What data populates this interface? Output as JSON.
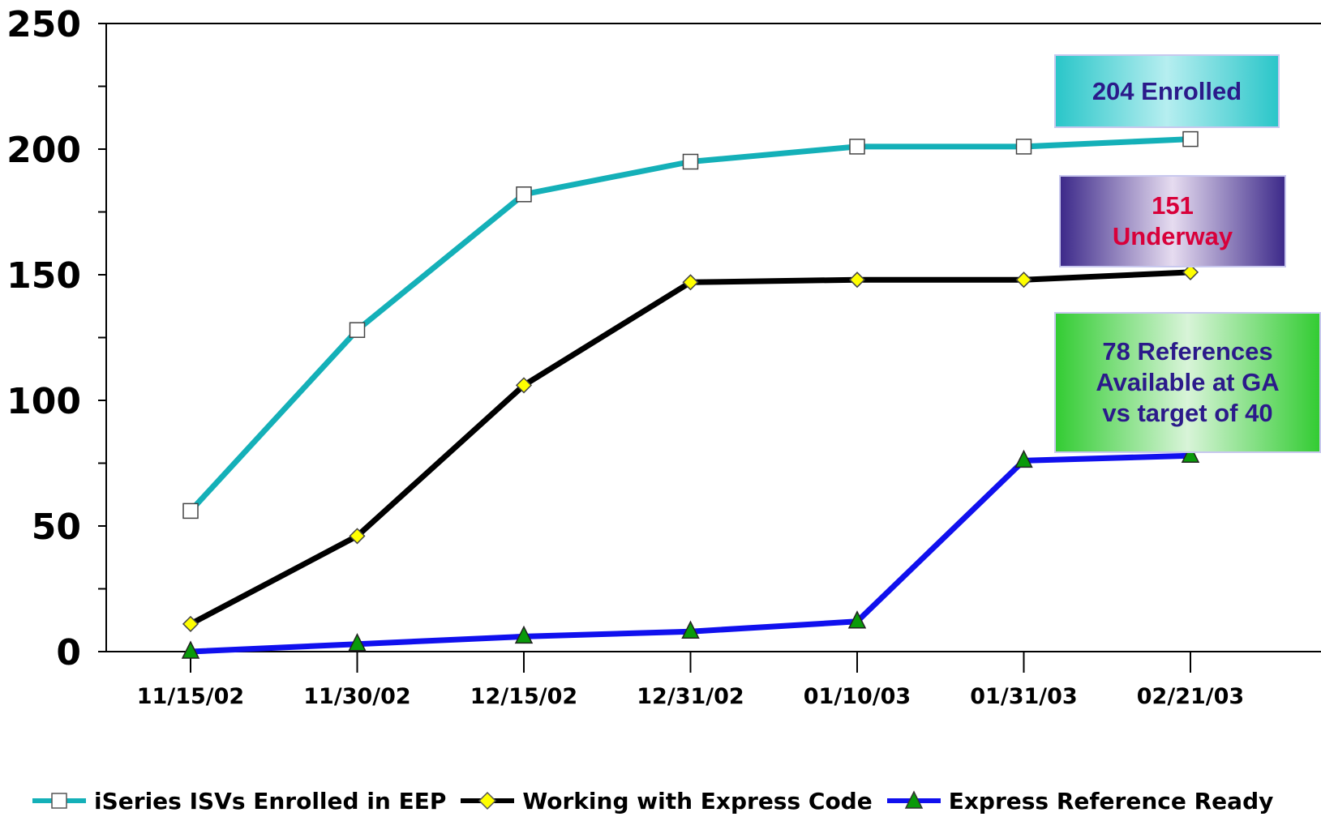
{
  "chart_data": {
    "type": "line",
    "categories": [
      "11/15/02",
      "11/30/02",
      "12/15/02",
      "12/31/02",
      "01/10/03",
      "01/31/03",
      "02/21/03"
    ],
    "series": [
      {
        "name": "iSeries ISVs Enrolled in EEP",
        "values": [
          56,
          128,
          182,
          195,
          201,
          201,
          204
        ],
        "color": "#14b0b8",
        "marker": "square"
      },
      {
        "name": "Working with Express Code",
        "values": [
          11,
          46,
          106,
          147,
          148,
          148,
          151
        ],
        "color": "#000000",
        "marker": "diamond"
      },
      {
        "name": "Express Reference Ready",
        "values": [
          0,
          3,
          6,
          8,
          12,
          76,
          78
        ],
        "color": "#1010ee",
        "marker": "triangle"
      }
    ],
    "yticks": [
      "0",
      "50",
      "100",
      "150",
      "200",
      "250"
    ],
    "ylim": [
      0,
      250
    ],
    "ytick_step": 50,
    "minor_tick_step": 25,
    "grid": false,
    "legend_position": "bottom",
    "annotations": [
      {
        "lines": [
          "204 Enrolled"
        ]
      },
      {
        "lines": [
          "151",
          "Underway"
        ]
      },
      {
        "lines": [
          "78 References",
          "Available at GA",
          "vs target of 40"
        ]
      }
    ]
  }
}
